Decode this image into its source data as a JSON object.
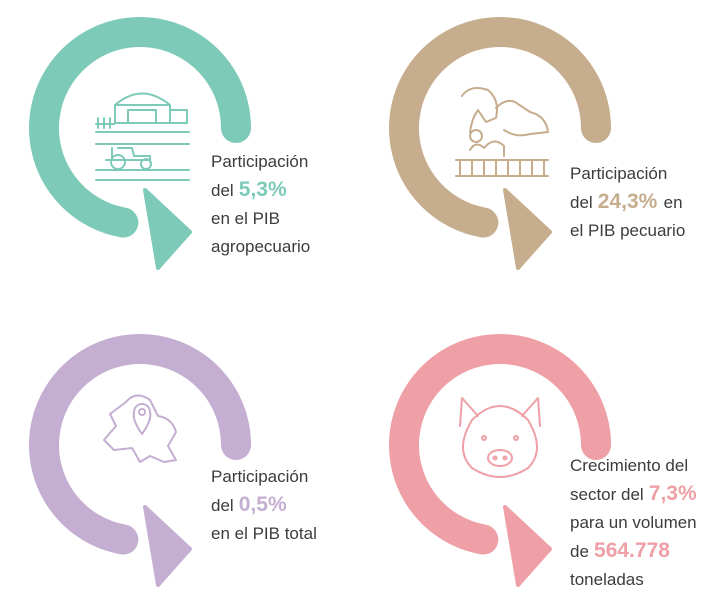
{
  "cards": [
    {
      "color": "#7ecab8",
      "lines": [
        [
          {
            "text": "Participación"
          }
        ],
        [
          {
            "text": "del"
          },
          {
            "value": "5,3%"
          }
        ],
        [
          {
            "text": "en el PIB"
          }
        ],
        [
          {
            "text": "agropecuario"
          }
        ]
      ]
    },
    {
      "color": "#c6ad8d",
      "lines": [
        [
          {
            "text": "Participación"
          }
        ],
        [
          {
            "text": "del"
          },
          {
            "value": "24,3%"
          },
          {
            "text": "en"
          }
        ],
        [
          {
            "text": "el PIB pecuario"
          }
        ]
      ]
    },
    {
      "color": "#c4aed1",
      "lines": [
        [
          {
            "text": "Participación"
          }
        ],
        [
          {
            "text": "del"
          },
          {
            "value": "0,5%"
          }
        ],
        [
          {
            "text": "en el PIB total"
          }
        ]
      ]
    },
    {
      "color": "#eea0a6",
      "lines": [
        [
          {
            "text": "Crecimiento del"
          }
        ],
        [
          {
            "text": "sector del"
          },
          {
            "value": "7,3%"
          }
        ],
        [
          {
            "text": "para un volumen"
          }
        ],
        [
          {
            "text": "de"
          },
          {
            "value": "564.778"
          }
        ],
        [
          {
            "text": "toneladas"
          }
        ]
      ]
    }
  ]
}
